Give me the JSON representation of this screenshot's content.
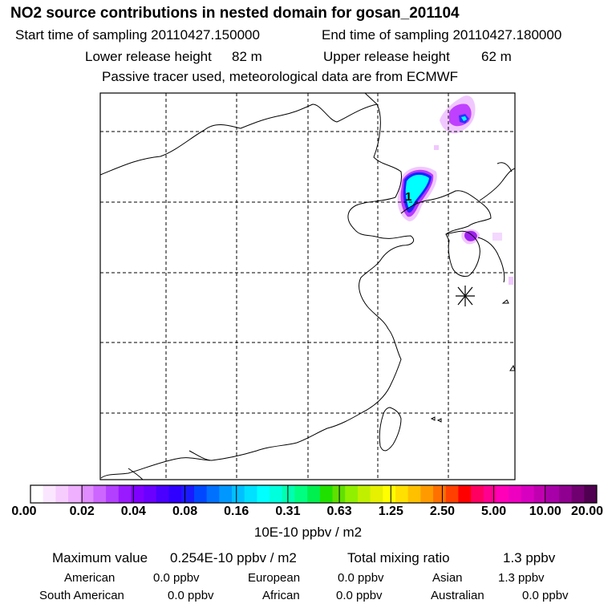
{
  "header": {
    "title": "NO2 source contributions in nested domain for gosan_201104",
    "start_label": "Start time of sampling 20110427.150000",
    "end_label": "End time of sampling 20110427.180000",
    "lower_label": "Lower release height",
    "lower_value": "82 m",
    "upper_label": "Upper release height",
    "upper_value": "62 m",
    "note": "Passive tracer used, meteorological data are from ECMWF"
  },
  "map": {
    "marker_label": "1",
    "receptor_symbol": "star",
    "colors": {
      "land_outline": "#000000",
      "grid": "#000000",
      "plume_light": "#f0c0ff",
      "plume_mid": "#b838ff",
      "plume_dark": "#8000d0",
      "plume_core": "#00ffff",
      "plume_edge": "#2020ff"
    }
  },
  "chart_data": {
    "type": "heatmap",
    "colorbar": {
      "ticks": [
        "0.00",
        "0.02",
        "0.04",
        "0.08",
        "0.16",
        "0.31",
        "0.63",
        "1.25",
        "2.50",
        "5.00",
        "10.00",
        "20.00"
      ],
      "colors": [
        "#ffffff",
        "#fbe6ff",
        "#f6ccff",
        "#eeb0ff",
        "#e08cff",
        "#cc66ff",
        "#b340ff",
        "#9a1aff",
        "#8000ff",
        "#6a00ff",
        "#4a00ff",
        "#2f00ff",
        "#1a1aff",
        "#0048ff",
        "#0070ff",
        "#0098ff",
        "#00c0ff",
        "#00e0ff",
        "#00ffff",
        "#00ffdd",
        "#00ffb0",
        "#00ff80",
        "#00f050",
        "#20e000",
        "#60e000",
        "#90f000",
        "#c0f000",
        "#e6f000",
        "#ffff00",
        "#ffe000",
        "#ffc000",
        "#ff9a00",
        "#ff7000",
        "#ff4000",
        "#ff0000",
        "#ff0060",
        "#ff0090",
        "#ff00b8",
        "#ee00c0",
        "#d800c0",
        "#c000b0",
        "#a800a8",
        "#900090",
        "#700070",
        "#500050"
      ],
      "unit": "10E-10 ppbv / m2"
    }
  },
  "summary": {
    "max_label": "Maximum value",
    "max_value": "0.254E-10 ppbv / m2",
    "total_label": "Total mixing ratio",
    "total_value": "1.3 ppbv",
    "american_label": "American",
    "american_value": "0.0 ppbv",
    "european_label": "European",
    "european_value": "0.0 ppbv",
    "asian_label": "Asian",
    "asian_value": "1.3 ppbv",
    "south_american_label": "South American",
    "south_american_value": "0.0 ppbv",
    "african_label": "African",
    "african_value": "0.0 ppbv",
    "australian_label": "Australian",
    "australian_value": "0.0 ppbv"
  }
}
